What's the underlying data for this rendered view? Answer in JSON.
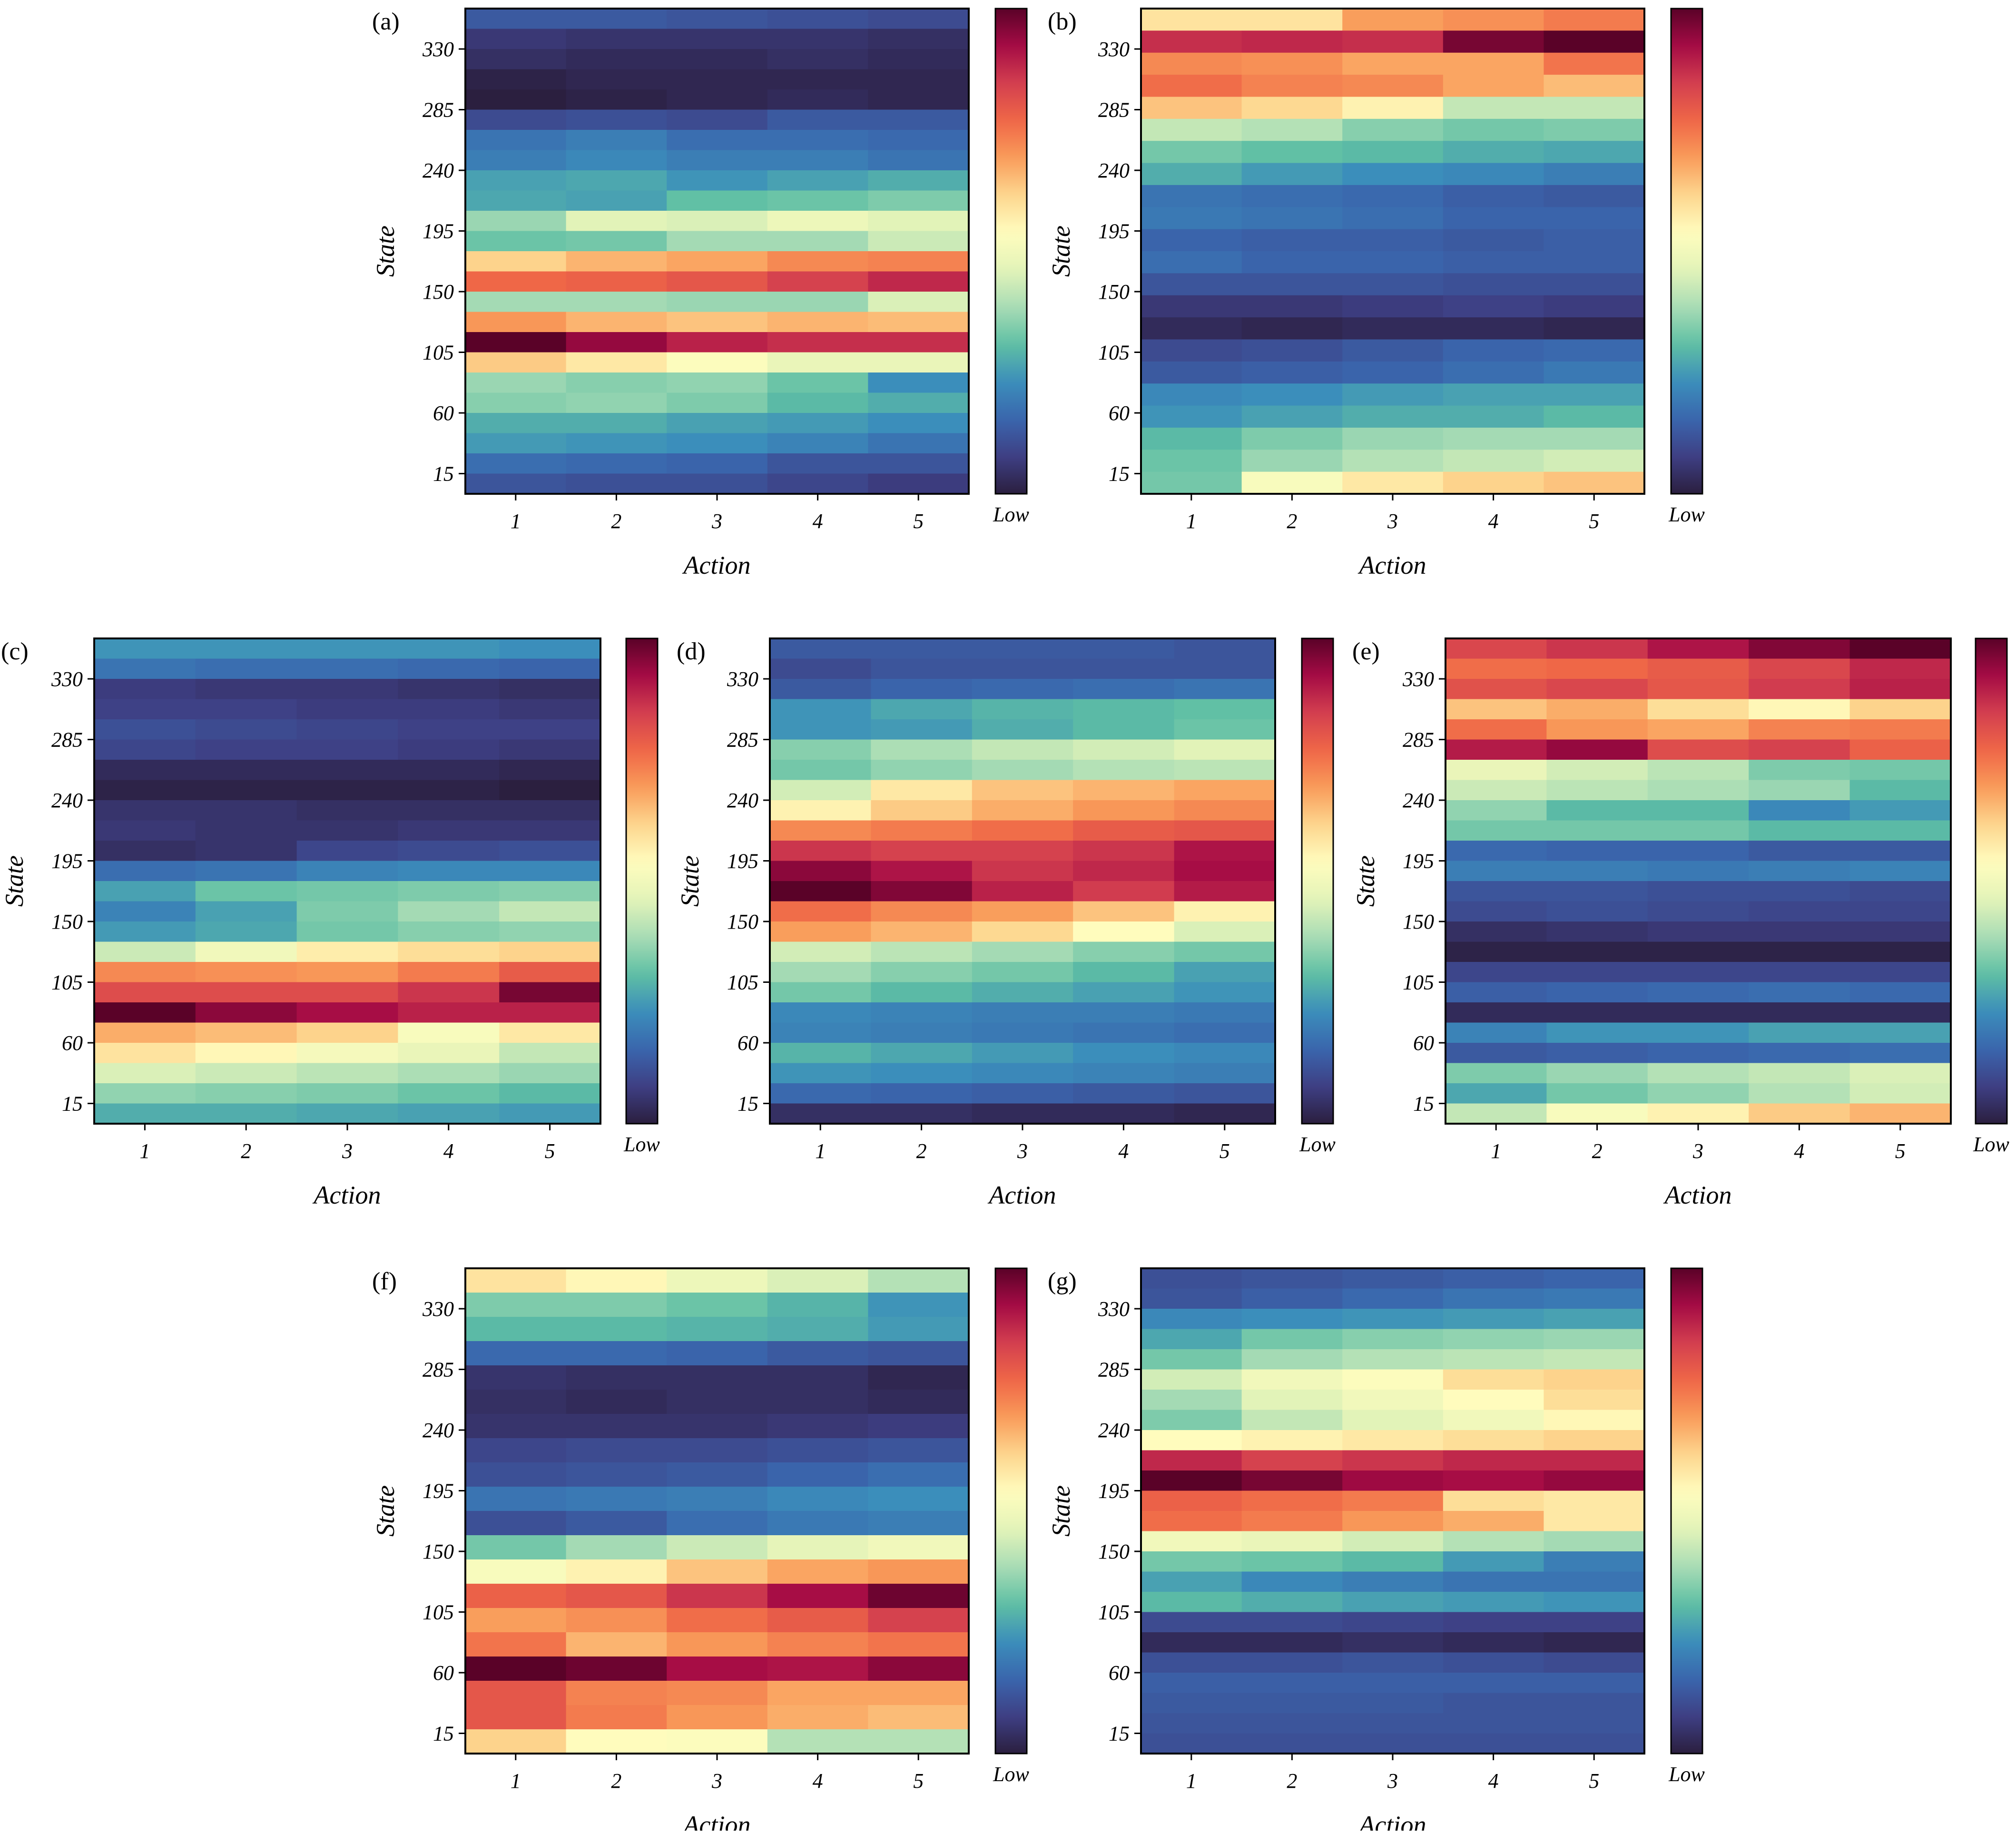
{
  "colormap": [
    "#2b1f3f",
    "#3e3f84",
    "#3a66ad",
    "#3b8ebb",
    "#5fbfa4",
    "#a8dcb5",
    "#e3f3b8",
    "#fffdbe",
    "#fdd68f",
    "#f99c5a",
    "#ef6747",
    "#d33f4f",
    "#a50b45",
    "#5a0228"
  ],
  "chart_data": [
    {
      "type": "heatmap",
      "panel_label": "(a)",
      "xlabel": "Action",
      "ylabel": "State",
      "xticks": [
        "1",
        "2",
        "3",
        "4",
        "5"
      ],
      "yticks": [
        "15",
        "60",
        "105",
        "150",
        "195",
        "240",
        "285",
        "330"
      ],
      "colorbar_label": "Low",
      "scale": "0 = low, 1 = high; rows listed from top (state ~360) to bottom (state ~0)",
      "values": [
        [
          0.13,
          0.13,
          0.12,
          0.11,
          0.1
        ],
        [
          0.06,
          0.05,
          0.05,
          0.05,
          0.04
        ],
        [
          0.04,
          0.03,
          0.03,
          0.04,
          0.03
        ],
        [
          0.01,
          0.02,
          0.02,
          0.02,
          0.02
        ],
        [
          0.0,
          0.01,
          0.02,
          0.03,
          0.02
        ],
        [
          0.1,
          0.11,
          0.1,
          0.13,
          0.13
        ],
        [
          0.18,
          0.2,
          0.17,
          0.17,
          0.16
        ],
        [
          0.2,
          0.22,
          0.2,
          0.2,
          0.18
        ],
        [
          0.26,
          0.27,
          0.24,
          0.26,
          0.28
        ],
        [
          0.27,
          0.26,
          0.31,
          0.32,
          0.34
        ],
        [
          0.37,
          0.46,
          0.45,
          0.49,
          0.46
        ],
        [
          0.32,
          0.33,
          0.38,
          0.38,
          0.43
        ],
        [
          0.62,
          0.66,
          0.68,
          0.72,
          0.73
        ],
        [
          0.77,
          0.78,
          0.8,
          0.84,
          0.88
        ],
        [
          0.38,
          0.38,
          0.37,
          0.37,
          0.45
        ],
        [
          0.7,
          0.66,
          0.64,
          0.66,
          0.65
        ],
        [
          1.0,
          0.94,
          0.89,
          0.87,
          0.87
        ],
        [
          0.63,
          0.58,
          0.53,
          0.48,
          0.48
        ],
        [
          0.37,
          0.35,
          0.36,
          0.32,
          0.23
        ],
        [
          0.35,
          0.36,
          0.34,
          0.3,
          0.28
        ],
        [
          0.28,
          0.28,
          0.26,
          0.25,
          0.23
        ],
        [
          0.25,
          0.24,
          0.23,
          0.21,
          0.18
        ],
        [
          0.17,
          0.16,
          0.15,
          0.12,
          0.12
        ],
        [
          0.12,
          0.11,
          0.11,
          0.09,
          0.07
        ]
      ]
    },
    {
      "type": "heatmap",
      "panel_label": "(b)",
      "xlabel": "Action",
      "ylabel": "State",
      "xticks": [
        "1",
        "2",
        "3",
        "4",
        "5"
      ],
      "yticks": [
        "15",
        "60",
        "105",
        "150",
        "195",
        "240",
        "285",
        "330"
      ],
      "colorbar_label": "Low",
      "scale": "0 = low, 1 = high; rows listed from top (state ~360) to bottom (state ~0)",
      "values": [
        [
          0.59,
          0.59,
          0.69,
          0.71,
          0.74
        ],
        [
          0.87,
          0.88,
          0.87,
          0.97,
          1.0
        ],
        [
          0.72,
          0.71,
          0.68,
          0.68,
          0.75
        ],
        [
          0.76,
          0.73,
          0.72,
          0.68,
          0.65
        ],
        [
          0.64,
          0.61,
          0.56,
          0.42,
          0.42
        ],
        [
          0.42,
          0.4,
          0.35,
          0.33,
          0.34
        ],
        [
          0.33,
          0.31,
          0.3,
          0.28,
          0.27
        ],
        [
          0.28,
          0.25,
          0.23,
          0.22,
          0.2
        ],
        [
          0.18,
          0.17,
          0.16,
          0.14,
          0.13
        ],
        [
          0.19,
          0.18,
          0.17,
          0.15,
          0.15
        ],
        [
          0.15,
          0.14,
          0.14,
          0.13,
          0.14
        ],
        [
          0.17,
          0.15,
          0.15,
          0.14,
          0.14
        ],
        [
          0.12,
          0.12,
          0.12,
          0.11,
          0.11
        ],
        [
          0.06,
          0.06,
          0.07,
          0.08,
          0.07
        ],
        [
          0.03,
          0.02,
          0.03,
          0.03,
          0.02
        ],
        [
          0.1,
          0.11,
          0.13,
          0.15,
          0.16
        ],
        [
          0.13,
          0.14,
          0.15,
          0.17,
          0.19
        ],
        [
          0.22,
          0.23,
          0.25,
          0.26,
          0.26
        ],
        [
          0.24,
          0.26,
          0.28,
          0.28,
          0.3
        ],
        [
          0.3,
          0.34,
          0.37,
          0.38,
          0.38
        ],
        [
          0.32,
          0.37,
          0.4,
          0.42,
          0.44
        ],
        [
          0.33,
          0.52,
          0.58,
          0.62,
          0.64
        ]
      ]
    },
    {
      "type": "heatmap",
      "panel_label": "(c)",
      "xlabel": "Action",
      "ylabel": "State",
      "xticks": [
        "1",
        "2",
        "3",
        "4",
        "5"
      ],
      "yticks": [
        "15",
        "60",
        "105",
        "150",
        "195",
        "240",
        "285",
        "330"
      ],
      "colorbar_label": "Low",
      "scale": "0 = low, 1 = high; rows listed from top (state ~360) to bottom (state ~0)",
      "values": [
        [
          0.24,
          0.24,
          0.24,
          0.24,
          0.23
        ],
        [
          0.18,
          0.17,
          0.17,
          0.16,
          0.15
        ],
        [
          0.07,
          0.06,
          0.06,
          0.05,
          0.04
        ],
        [
          0.08,
          0.08,
          0.07,
          0.07,
          0.06
        ],
        [
          0.11,
          0.1,
          0.09,
          0.08,
          0.08
        ],
        [
          0.09,
          0.08,
          0.08,
          0.07,
          0.06
        ],
        [
          0.03,
          0.03,
          0.03,
          0.03,
          0.02
        ],
        [
          0.01,
          0.01,
          0.01,
          0.01,
          0.0
        ],
        [
          0.05,
          0.05,
          0.04,
          0.04,
          0.04
        ],
        [
          0.06,
          0.05,
          0.05,
          0.06,
          0.06
        ],
        [
          0.04,
          0.05,
          0.09,
          0.1,
          0.11
        ],
        [
          0.17,
          0.18,
          0.21,
          0.22,
          0.22
        ],
        [
          0.26,
          0.32,
          0.33,
          0.34,
          0.35
        ],
        [
          0.21,
          0.26,
          0.34,
          0.38,
          0.42
        ],
        [
          0.25,
          0.27,
          0.33,
          0.35,
          0.36
        ],
        [
          0.43,
          0.5,
          0.57,
          0.6,
          0.62
        ],
        [
          0.72,
          0.71,
          0.7,
          0.74,
          0.79
        ],
        [
          0.82,
          0.82,
          0.82,
          0.86,
          0.97
        ],
        [
          1.0,
          0.95,
          0.92,
          0.89,
          0.89
        ],
        [
          0.67,
          0.65,
          0.62,
          0.52,
          0.58
        ],
        [
          0.59,
          0.55,
          0.51,
          0.48,
          0.42
        ],
        [
          0.45,
          0.43,
          0.41,
          0.39,
          0.37
        ],
        [
          0.36,
          0.35,
          0.34,
          0.32,
          0.3
        ],
        [
          0.28,
          0.28,
          0.27,
          0.26,
          0.25
        ]
      ]
    },
    {
      "type": "heatmap",
      "panel_label": "(d)",
      "xlabel": "Action",
      "ylabel": "State",
      "xticks": [
        "1",
        "2",
        "3",
        "4",
        "5"
      ],
      "yticks": [
        "15",
        "60",
        "105",
        "150",
        "195",
        "240",
        "285",
        "330"
      ],
      "colorbar_label": "Low",
      "scale": "0 = low, 1 = high; rows listed from top (state ~360) to bottom (state ~0)",
      "values": [
        [
          0.13,
          0.13,
          0.13,
          0.13,
          0.12
        ],
        [
          0.1,
          0.12,
          0.12,
          0.12,
          0.12
        ],
        [
          0.13,
          0.15,
          0.16,
          0.17,
          0.18
        ],
        [
          0.24,
          0.27,
          0.29,
          0.3,
          0.31
        ],
        [
          0.24,
          0.25,
          0.28,
          0.3,
          0.32
        ],
        [
          0.35,
          0.39,
          0.42,
          0.44,
          0.46
        ],
        [
          0.33,
          0.36,
          0.38,
          0.4,
          0.41
        ],
        [
          0.44,
          0.58,
          0.64,
          0.66,
          0.68
        ],
        [
          0.56,
          0.63,
          0.67,
          0.7,
          0.72
        ],
        [
          0.72,
          0.74,
          0.76,
          0.79,
          0.8
        ],
        [
          0.86,
          0.84,
          0.84,
          0.86,
          0.91
        ],
        [
          0.95,
          0.91,
          0.86,
          0.88,
          0.92
        ],
        [
          1.0,
          0.96,
          0.89,
          0.85,
          0.9
        ],
        [
          0.76,
          0.72,
          0.69,
          0.64,
          0.56
        ],
        [
          0.69,
          0.66,
          0.61,
          0.54,
          0.45
        ],
        [
          0.44,
          0.41,
          0.38,
          0.35,
          0.33
        ],
        [
          0.38,
          0.35,
          0.33,
          0.3,
          0.26
        ],
        [
          0.33,
          0.3,
          0.28,
          0.26,
          0.24
        ],
        [
          0.22,
          0.21,
          0.2,
          0.2,
          0.19
        ],
        [
          0.21,
          0.2,
          0.19,
          0.18,
          0.17
        ],
        [
          0.29,
          0.27,
          0.25,
          0.23,
          0.22
        ],
        [
          0.24,
          0.23,
          0.22,
          0.21,
          0.2
        ],
        [
          0.16,
          0.15,
          0.14,
          0.13,
          0.12
        ],
        [
          0.04,
          0.04,
          0.03,
          0.03,
          0.02
        ]
      ]
    },
    {
      "type": "heatmap",
      "panel_label": "(e)",
      "xlabel": "Action",
      "ylabel": "State",
      "xticks": [
        "1",
        "2",
        "3",
        "4",
        "5"
      ],
      "yticks": [
        "15",
        "60",
        "105",
        "150",
        "195",
        "240",
        "285",
        "330"
      ],
      "colorbar_label": "Low",
      "scale": "0 = low, 1 = high; rows listed from top (state ~360) to bottom (state ~0)",
      "values": [
        [
          0.83,
          0.86,
          0.91,
          0.96,
          1.0
        ],
        [
          0.76,
          0.77,
          0.79,
          0.83,
          0.88
        ],
        [
          0.81,
          0.83,
          0.8,
          0.85,
          0.89
        ],
        [
          0.64,
          0.67,
          0.6,
          0.55,
          0.62
        ],
        [
          0.76,
          0.7,
          0.68,
          0.73,
          0.74
        ],
        [
          0.9,
          0.94,
          0.82,
          0.84,
          0.78
        ],
        [
          0.48,
          0.44,
          0.41,
          0.34,
          0.33
        ],
        [
          0.43,
          0.41,
          0.39,
          0.37,
          0.3
        ],
        [
          0.36,
          0.3,
          0.3,
          0.22,
          0.25
        ],
        [
          0.33,
          0.33,
          0.33,
          0.3,
          0.3
        ],
        [
          0.16,
          0.15,
          0.15,
          0.13,
          0.13
        ],
        [
          0.2,
          0.2,
          0.19,
          0.2,
          0.21
        ],
        [
          0.12,
          0.12,
          0.11,
          0.11,
          0.1
        ],
        [
          0.1,
          0.11,
          0.1,
          0.09,
          0.09
        ],
        [
          0.04,
          0.05,
          0.06,
          0.06,
          0.06
        ],
        [
          0.01,
          0.01,
          0.01,
          0.01,
          0.01
        ],
        [
          0.09,
          0.09,
          0.09,
          0.09,
          0.09
        ],
        [
          0.14,
          0.15,
          0.16,
          0.17,
          0.16
        ],
        [
          0.03,
          0.03,
          0.03,
          0.03,
          0.03
        ],
        [
          0.21,
          0.24,
          0.24,
          0.26,
          0.26
        ],
        [
          0.13,
          0.14,
          0.15,
          0.16,
          0.17
        ],
        [
          0.34,
          0.37,
          0.4,
          0.42,
          0.45
        ],
        [
          0.27,
          0.33,
          0.36,
          0.4,
          0.44
        ],
        [
          0.42,
          0.52,
          0.56,
          0.63,
          0.66
        ]
      ]
    },
    {
      "type": "heatmap",
      "panel_label": "(f)",
      "xlabel": "Action",
      "ylabel": "State",
      "xticks": [
        "1",
        "2",
        "3",
        "4",
        "5"
      ],
      "yticks": [
        "15",
        "60",
        "105",
        "150",
        "195",
        "240",
        "285",
        "330"
      ],
      "colorbar_label": "Low",
      "scale": "0 = low, 1 = high; rows listed from top (state ~360) to bottom (state ~0)",
      "values": [
        [
          0.59,
          0.55,
          0.49,
          0.45,
          0.4
        ],
        [
          0.34,
          0.34,
          0.32,
          0.29,
          0.24
        ],
        [
          0.3,
          0.3,
          0.29,
          0.28,
          0.25
        ],
        [
          0.16,
          0.16,
          0.15,
          0.13,
          0.12
        ],
        [
          0.05,
          0.04,
          0.04,
          0.04,
          0.02
        ],
        [
          0.04,
          0.03,
          0.04,
          0.04,
          0.03
        ],
        [
          0.05,
          0.05,
          0.05,
          0.06,
          0.07
        ],
        [
          0.09,
          0.1,
          0.1,
          0.11,
          0.12
        ],
        [
          0.11,
          0.12,
          0.13,
          0.15,
          0.17
        ],
        [
          0.18,
          0.19,
          0.2,
          0.22,
          0.23
        ],
        [
          0.11,
          0.13,
          0.17,
          0.19,
          0.2
        ],
        [
          0.33,
          0.38,
          0.43,
          0.47,
          0.5
        ],
        [
          0.52,
          0.56,
          0.64,
          0.68,
          0.7
        ],
        [
          0.78,
          0.8,
          0.86,
          0.92,
          0.98
        ],
        [
          0.69,
          0.71,
          0.76,
          0.79,
          0.84
        ],
        [
          0.75,
          0.66,
          0.7,
          0.73,
          0.75
        ],
        [
          1.0,
          0.98,
          0.92,
          0.91,
          0.95
        ],
        [
          0.8,
          0.73,
          0.72,
          0.68,
          0.68
        ],
        [
          0.8,
          0.74,
          0.7,
          0.67,
          0.65
        ],
        [
          0.62,
          0.54,
          0.53,
          0.4,
          0.4
        ]
      ]
    },
    {
      "type": "heatmap",
      "panel_label": "(g)",
      "xlabel": "Action",
      "ylabel": "State",
      "xticks": [
        "1",
        "2",
        "3",
        "4",
        "5"
      ],
      "yticks": [
        "15",
        "60",
        "105",
        "150",
        "195",
        "240",
        "285",
        "330"
      ],
      "colorbar_label": "Low",
      "scale": "0 = low, 1 = high; rows listed from top (state ~360) to bottom (state ~0)",
      "values": [
        [
          0.11,
          0.12,
          0.13,
          0.14,
          0.15
        ],
        [
          0.12,
          0.14,
          0.16,
          0.18,
          0.19
        ],
        [
          0.22,
          0.23,
          0.24,
          0.25,
          0.26
        ],
        [
          0.27,
          0.33,
          0.35,
          0.36,
          0.37
        ],
        [
          0.33,
          0.38,
          0.4,
          0.41,
          0.42
        ],
        [
          0.44,
          0.5,
          0.53,
          0.6,
          0.62
        ],
        [
          0.38,
          0.46,
          0.5,
          0.54,
          0.6
        ],
        [
          0.34,
          0.42,
          0.46,
          0.5,
          0.55
        ],
        [
          0.54,
          0.56,
          0.58,
          0.6,
          0.62
        ],
        [
          0.88,
          0.84,
          0.86,
          0.88,
          0.88
        ],
        [
          1.0,
          0.97,
          0.93,
          0.92,
          0.94
        ],
        [
          0.78,
          0.76,
          0.74,
          0.6,
          0.58
        ],
        [
          0.76,
          0.74,
          0.7,
          0.67,
          0.58
        ],
        [
          0.5,
          0.48,
          0.44,
          0.4,
          0.38
        ],
        [
          0.33,
          0.32,
          0.3,
          0.25,
          0.2
        ],
        [
          0.26,
          0.22,
          0.2,
          0.18,
          0.18
        ],
        [
          0.3,
          0.28,
          0.26,
          0.25,
          0.24
        ],
        [
          0.1,
          0.1,
          0.09,
          0.08,
          0.08
        ],
        [
          0.03,
          0.03,
          0.04,
          0.03,
          0.02
        ],
        [
          0.11,
          0.11,
          0.12,
          0.11,
          0.1
        ],
        [
          0.14,
          0.14,
          0.14,
          0.14,
          0.14
        ],
        [
          0.13,
          0.13,
          0.13,
          0.12,
          0.12
        ],
        [
          0.12,
          0.12,
          0.12,
          0.12,
          0.12
        ],
        [
          0.11,
          0.11,
          0.11,
          0.11,
          0.11
        ]
      ]
    }
  ]
}
